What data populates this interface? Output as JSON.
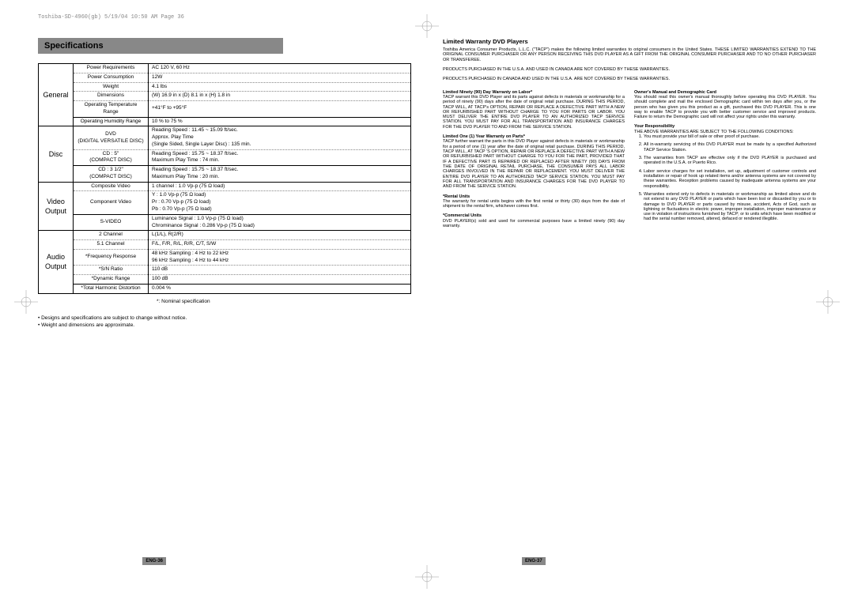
{
  "header_meta": "Toshiba-SD-4960(gb)  5/19/04 10:50 AM  Page 36",
  "left_page": {
    "section_title": "Specifications",
    "page_num": "ENG-36",
    "nominal_note": "*: Nominal specification",
    "bullets": [
      "• Designs and specifications are subject to change without notice.",
      "• Weight and dimensions are approximate."
    ],
    "groups": [
      {
        "category": "General",
        "rows": [
          {
            "label": "Power Requirements",
            "value": "AC 120 V, 60 Hz"
          },
          {
            "label": "Power Consumption",
            "value": "12W"
          },
          {
            "label": "Weight",
            "value": "4.1 lbs"
          },
          {
            "label": "Dimensions",
            "value": "(W) 16.9 in x (D) 8.1 in x (H) 1.8 in"
          },
          {
            "label": "Operating Temperature Range",
            "value": "+41°F to +95°F"
          },
          {
            "label": "Operating Humidity Range",
            "value": "10 % to 75 %"
          }
        ]
      },
      {
        "category": "Disc",
        "rows": [
          {
            "label": "DVD\n(DIGITAL VERSATILE DISC)",
            "value": "Reading Speed : 11.45 ~ 15.09 ft/sec.\nApprox. Play Time\n(Single Sided, Single Layer Disc) : 135 min."
          },
          {
            "label": "CD : 5\"\n(COMPACT DISC)",
            "value": "Reading Speed : 15.75 ~ 18.37 ft/sec.\nMaximum Play Time : 74 min."
          },
          {
            "label": "CD : 3 1/2\"\n(COMPACT DISC)",
            "value": "Reading Speed : 15.75 ~ 18.37 ft/sec.\nMaximum Play Time : 20 min."
          }
        ]
      },
      {
        "category": "Video\nOutput",
        "rows": [
          {
            "label": "Composite Video",
            "value": "1 channel : 1.0 Vp-p (75 Ω load)"
          },
          {
            "label": "Component Video",
            "value": "Y : 1.0 Vp-p (75 Ω load)\nPr : 0.70 Vp-p (75 Ω load)\nPb : 0.70 Vp-p (75 Ω load)"
          },
          {
            "label": "S-VIDEO",
            "value": "Luminance Signal : 1.0 Vp-p (75 Ω load)\nChrominance Signal : 0.286 Vp-p (75 Ω load)"
          }
        ]
      },
      {
        "category": "Audio\nOutput",
        "rows": [
          {
            "label": "2 Channel",
            "value": "L(1/L), R(2/R)"
          },
          {
            "label": "5.1 Channel",
            "value": "F/L, F/R, R/L, R/R, C/T, S/W"
          },
          {
            "label": "*Frequency Response",
            "value": "48 kHz Sampling : 4 Hz to 22 kHz\n96 kHz Sampling : 4 Hz to 44 kHz"
          },
          {
            "label": "*S/N Ratio",
            "value": "110 dB"
          },
          {
            "label": "*Dynamic Range",
            "value": "100 dB"
          },
          {
            "label": "*Total Harmonic Distortion",
            "value": "0.004 %"
          }
        ]
      }
    ]
  },
  "right_page": {
    "page_num": "ENG-37",
    "title": "Limited Warranty DVD Players",
    "intro1": "Toshiba America Consumer Products, L.L.C. (\"TACP\") makes the following limited warranties to original consumers in the United States. THESE LIMITED WARRANTIES EXTEND TO THE ORIGINAL CONSUMER PURCHASER OR ANY PERSON RECEIVING THIS DVD PLAYER AS A GIFT FROM THE ORIGINAL CONSUMER PURCHASER AND TO NO OTHER PURCHASER OR TRANSFEREE.",
    "intro2": "PRODUCTS PURCHASED IN THE U.S.A. AND USED IN CANADA ARE NOT COVERED BY THESE WARRANTIES.",
    "intro3": "PRODUCTS PURCHASED IN CANADA AND USED IN THE U.S.A. ARE NOT COVERED BY THESE WARRANTIES.",
    "col1": {
      "h1": "Limited Ninety (90) Day Warranty on Labor*",
      "p1": "TACP warrant this DVD Player and its parts against defects in materials or workmanship for a period of ninety (90) days after the date of original retail purchase. DURING THIS PERIOD, TACP WILL, AT TACP's OPTION, REPAIR OR REPLACE A DEFECTIVE PART WITH A NEW OR REFURBISHED PART WITHOUT CHARGE TO YOU FOR PARTS OR LABOR. YOU MUST DELIVER THE ENTIRE DVD PLAYER TO AN AUTHORIZED TACP SERVICE STATION. YOU MUST PAY FOR ALL TRANSPORTATION AND INSURANCE CHARGES FOR THE DVD PLAYER TO AND FROM THE SERVICE STATION.",
      "h2": "Limited One (1) Year Warranty on Parts*",
      "p2": "TACP further warrant the parts in this DVD Player against defects in materials or workmanship for a period of one (1) year after the date of original retail purchase. DURING THIS PERIOD, TACP WILL, AT TACP 'S OPTION, REPAIR OR REPLACE A DEFECTIVE PART WITH A NEW OR REFURBISHED PART WITHOUT CHARGE TO YOU FOR THE PART, PROVIDED THAT IF A DEFECTIVE PART IS REPAIRED OR REPLACED AFTER NINETY (90) DAYS FROM THE DATE OF ORIGINAL RETAIL PURCHASE, THE CONSUMER PAYS ALL LABOR CHARGES INVOLVED IN THE REPAIR OR REPLACEMENT. YOU MUST DELIVER THE ENTIRE DVD PLAYER TO AN AUTHORIZED TACP SERVICE STATION. YOU MUST PAY FOR ALL TRANSPORTATION AND INSURANCE CHARGES FOR THE DVD PLAYER TO AND FROM THE SERVICE STATION.",
      "h3": "*Rental Units",
      "p3": "The warranty for rental units begins with the first rental or thirty (30) days from the date of shipment to the rental firm, whichever comes first.",
      "h4": "*Commercial Units",
      "p4": "DVD PLAYER(s) sold and used for commercial purposes have a limited ninety (90) day warranty."
    },
    "col2": {
      "h1": "Owner's Manual and Demographic Card",
      "p1": "You should read this owner's manual thoroughly before operating this DVD PLAYER. You should complete and mail the enclosed Demographic card within ten days after you, or the person who has given you this product as a gift, purchased this DVD PLAYER. This is one way to enable TACP to provide you with better customer service and improved products. Failure to return the Demographic card will not affect your rights under this warranty.",
      "h2": "Your Responsibility",
      "p2": "THE ABOVE WARRANTIES ARE SUBJECT TO THE FOLLOWING CONDITIONS:",
      "items": [
        "You must provide your bill of sale or other proof of purchase.",
        "All in-warranty servicing of this DVD PLAYER must be made by a specified Authorized TACP Service Station.",
        "The warranties from TACP are effective only if the DVD PLAYER is purchased and operated in the U.S.A. or Puerto Rico.",
        "Labor service charges for set installation, set up, adjustment of customer controls and installation or repair of hook up related items and/or antenna systems are not covered by these warranties. Reception problems caused by inadequate antenna systems are your responsibility.",
        "Warranties extend only to defects in materials or workmanship as limited above and do not extend to any DVD PLAYER or parts which have been lost or discarded by you or to damage to DVD PLAYER or parts caused by misuse, accident, Acts of God, such as lightning or fluctuations in electric power, improper installation, improper maintenance or use in violation of instructions furnished by TACP; or to units which have been modified or had the serial number removed, altered, defaced or rendered illegible."
      ]
    }
  }
}
